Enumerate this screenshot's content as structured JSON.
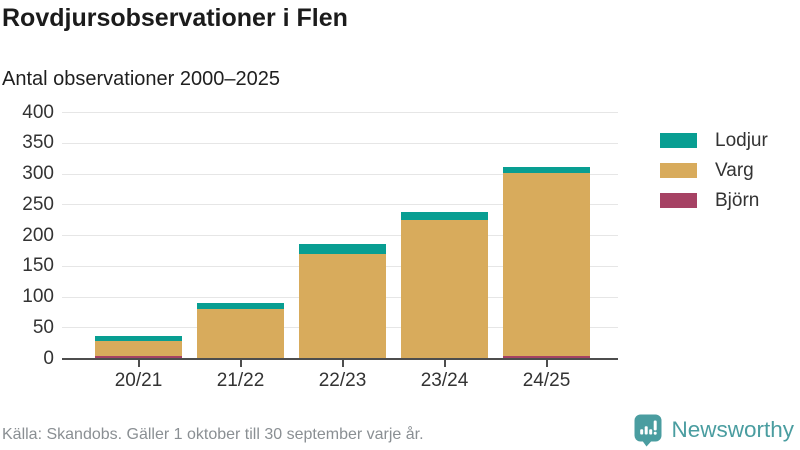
{
  "chart_data": {
    "type": "bar",
    "stacked": true,
    "title": "Rovdjursobservationer i Flen",
    "subtitle": "Antal observationer 2000–2025",
    "categories": [
      "20/21",
      "21/22",
      "22/23",
      "23/24",
      "24/25"
    ],
    "series": [
      {
        "name": "Björn",
        "key": "bjorn",
        "color": "#a64264",
        "values": [
          3,
          0,
          0,
          0,
          4
        ]
      },
      {
        "name": "Varg",
        "key": "varg",
        "color": "#d8ab5c",
        "values": [
          24,
          79,
          169,
          225,
          297
        ]
      },
      {
        "name": "Lodjur",
        "key": "lodjur",
        "color": "#089e92",
        "values": [
          9,
          11,
          16,
          13,
          9
        ]
      }
    ],
    "totals": [
      36,
      90,
      185,
      238,
      310
    ],
    "xlabel": "",
    "ylabel": "",
    "ylim": [
      0,
      400
    ],
    "yticks": [
      0,
      50,
      100,
      150,
      200,
      250,
      300,
      350,
      400
    ],
    "grid": true,
    "legend_position": "right",
    "legend_order": [
      "Lodjur",
      "Varg",
      "Björn"
    ]
  },
  "footer": {
    "source": "Källa: Skandobs. Gäller 1 oktober till 30 september varje år."
  },
  "branding": {
    "name": "Newsworthy",
    "color": "#4a9da0"
  },
  "colors": {
    "axis": "#4d4d4d",
    "grid": "#e6e6e6",
    "text": "#333333",
    "muted": "#8a8f93"
  }
}
